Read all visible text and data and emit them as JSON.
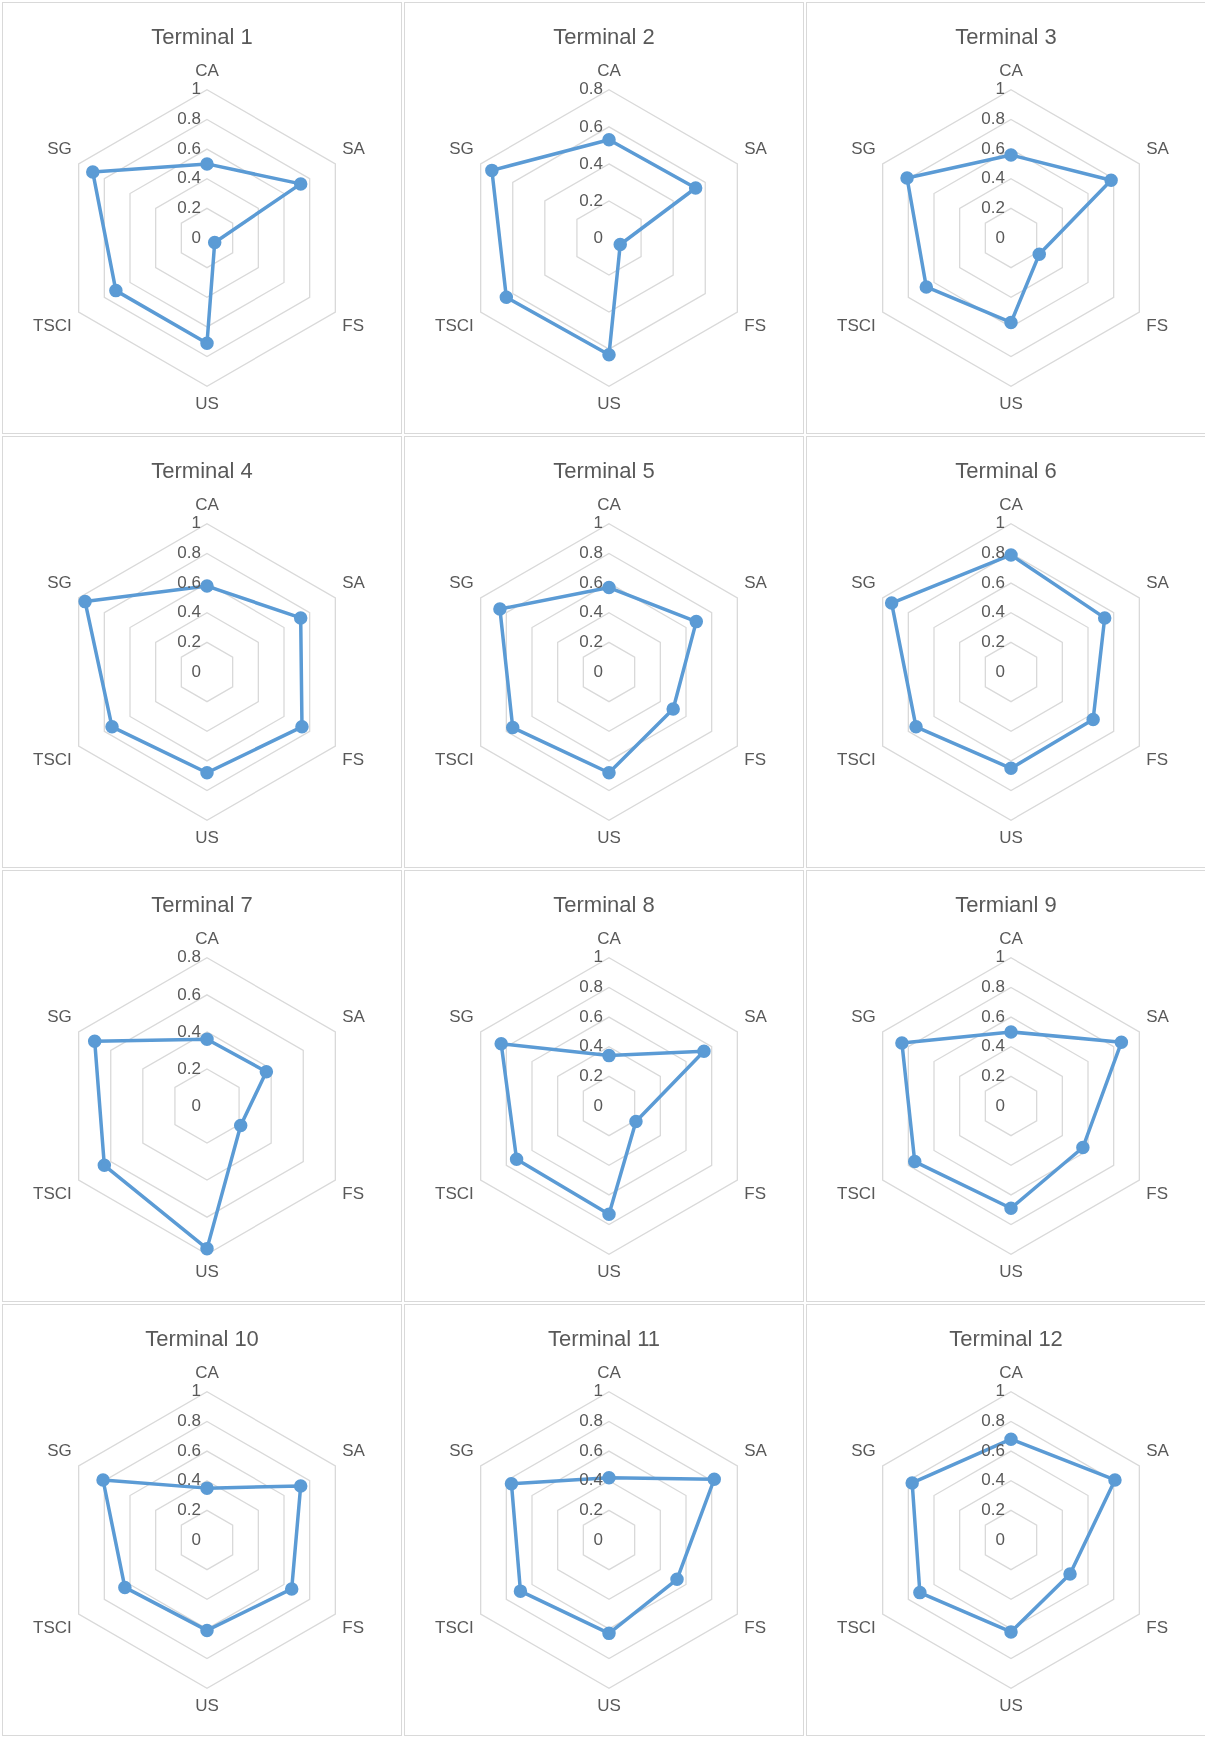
{
  "chart_data": [
    {
      "type": "radar",
      "title": "Terminal 1",
      "categories": [
        "CA",
        "SA",
        "FS",
        "US",
        "TSCI",
        "SG"
      ],
      "series": [
        {
          "color": "#5b9bd5",
          "values": [
            0.5,
            0.73,
            0.06,
            0.71,
            0.71,
            0.89
          ]
        }
      ],
      "ylim": [
        0,
        1
      ],
      "yticks": [
        0,
        0.2,
        0.4,
        0.6,
        0.8,
        1
      ],
      "grid": true,
      "marker": "circle"
    },
    {
      "type": "radar",
      "title": "Terminal 2",
      "categories": [
        "CA",
        "SA",
        "FS",
        "US",
        "TSCI",
        "SG"
      ],
      "series": [
        {
          "color": "#5b9bd5",
          "values": [
            0.53,
            0.54,
            0.07,
            0.63,
            0.64,
            0.73
          ]
        }
      ],
      "ylim": [
        0,
        0.8
      ],
      "yticks": [
        0,
        0.2,
        0.4,
        0.6,
        0.8
      ],
      "grid": true,
      "marker": "circle"
    },
    {
      "type": "radar",
      "title": "Terminal 3",
      "categories": [
        "CA",
        "SA",
        "FS",
        "US",
        "TSCI",
        "SG"
      ],
      "series": [
        {
          "color": "#5b9bd5",
          "values": [
            0.56,
            0.78,
            0.22,
            0.57,
            0.66,
            0.81
          ]
        }
      ],
      "ylim": [
        0,
        1
      ],
      "yticks": [
        0,
        0.2,
        0.4,
        0.6,
        0.8,
        1
      ],
      "grid": true,
      "marker": "circle"
    },
    {
      "type": "radar",
      "title": "Terminal 4",
      "categories": [
        "CA",
        "SA",
        "FS",
        "US",
        "TSCI",
        "SG"
      ],
      "series": [
        {
          "color": "#5b9bd5",
          "values": [
            0.58,
            0.73,
            0.74,
            0.68,
            0.74,
            0.95
          ]
        }
      ],
      "ylim": [
        0,
        1
      ],
      "yticks": [
        0,
        0.2,
        0.4,
        0.6,
        0.8,
        1
      ],
      "grid": true,
      "marker": "circle"
    },
    {
      "type": "radar",
      "title": "Terminal 5",
      "categories": [
        "CA",
        "SA",
        "FS",
        "US",
        "TSCI",
        "SG"
      ],
      "series": [
        {
          "color": "#5b9bd5",
          "values": [
            0.57,
            0.68,
            0.5,
            0.68,
            0.75,
            0.85
          ]
        }
      ],
      "ylim": [
        0,
        1
      ],
      "yticks": [
        0,
        0.2,
        0.4,
        0.6,
        0.8,
        1
      ],
      "grid": true,
      "marker": "circle"
    },
    {
      "type": "radar",
      "title": "Terminal 6",
      "categories": [
        "CA",
        "SA",
        "FS",
        "US",
        "TSCI",
        "SG"
      ],
      "series": [
        {
          "color": "#5b9bd5",
          "values": [
            0.79,
            0.73,
            0.64,
            0.65,
            0.74,
            0.93
          ]
        }
      ],
      "ylim": [
        0,
        1
      ],
      "yticks": [
        0,
        0.2,
        0.4,
        0.6,
        0.8,
        1
      ],
      "grid": true,
      "marker": "circle"
    },
    {
      "type": "radar",
      "title": "Terminal 7",
      "categories": [
        "CA",
        "SA",
        "FS",
        "US",
        "TSCI",
        "SG"
      ],
      "series": [
        {
          "color": "#5b9bd5",
          "values": [
            0.36,
            0.37,
            0.21,
            0.77,
            0.64,
            0.7
          ]
        }
      ],
      "ylim": [
        0,
        0.8
      ],
      "yticks": [
        0,
        0.2,
        0.4,
        0.6,
        0.8
      ],
      "grid": true,
      "marker": "circle"
    },
    {
      "type": "radar",
      "title": "Terminal 8",
      "categories": [
        "CA",
        "SA",
        "FS",
        "US",
        "TSCI",
        "SG"
      ],
      "series": [
        {
          "color": "#5b9bd5",
          "values": [
            0.34,
            0.74,
            0.21,
            0.73,
            0.72,
            0.84
          ]
        }
      ],
      "ylim": [
        0,
        1
      ],
      "yticks": [
        0,
        0.2,
        0.4,
        0.6,
        0.8,
        1
      ],
      "grid": true,
      "marker": "circle"
    },
    {
      "type": "radar",
      "title": "Termianl 9",
      "categories": [
        "CA",
        "SA",
        "FS",
        "US",
        "TSCI",
        "SG"
      ],
      "series": [
        {
          "color": "#5b9bd5",
          "values": [
            0.5,
            0.86,
            0.56,
            0.69,
            0.75,
            0.85
          ]
        }
      ],
      "ylim": [
        0,
        1
      ],
      "yticks": [
        0,
        0.2,
        0.4,
        0.6,
        0.8,
        1
      ],
      "grid": true,
      "marker": "circle"
    },
    {
      "type": "radar",
      "title": "Terminal 10",
      "categories": [
        "CA",
        "SA",
        "FS",
        "US",
        "TSCI",
        "SG"
      ],
      "series": [
        {
          "color": "#5b9bd5",
          "values": [
            0.35,
            0.73,
            0.66,
            0.61,
            0.64,
            0.81
          ]
        }
      ],
      "ylim": [
        0,
        1
      ],
      "yticks": [
        0,
        0.2,
        0.4,
        0.6,
        0.8,
        1
      ],
      "grid": true,
      "marker": "circle"
    },
    {
      "type": "radar",
      "title": "Terminal 11",
      "categories": [
        "CA",
        "SA",
        "FS",
        "US",
        "TSCI",
        "SG"
      ],
      "series": [
        {
          "color": "#5b9bd5",
          "values": [
            0.42,
            0.82,
            0.53,
            0.63,
            0.69,
            0.76
          ]
        }
      ],
      "ylim": [
        0,
        1
      ],
      "yticks": [
        0,
        0.2,
        0.4,
        0.6,
        0.8,
        1
      ],
      "grid": true,
      "marker": "circle"
    },
    {
      "type": "radar",
      "title": "Terminal 12",
      "categories": [
        "CA",
        "SA",
        "FS",
        "US",
        "TSCI",
        "SG"
      ],
      "series": [
        {
          "color": "#5b9bd5",
          "values": [
            0.68,
            0.81,
            0.46,
            0.62,
            0.71,
            0.77
          ]
        }
      ],
      "ylim": [
        0,
        1
      ],
      "yticks": [
        0,
        0.2,
        0.4,
        0.6,
        0.8,
        1
      ],
      "grid": true,
      "marker": "circle"
    }
  ]
}
